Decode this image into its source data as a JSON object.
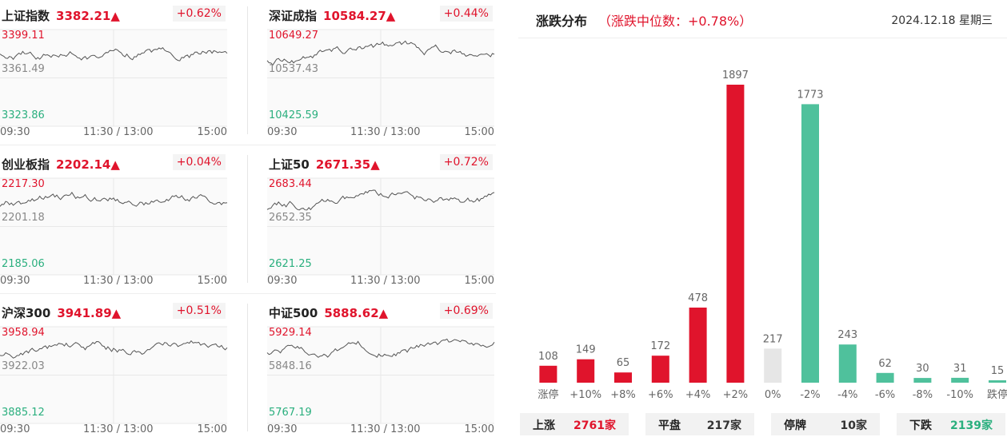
{
  "index_cards": [
    {
      "name": "上证指数",
      "value": "3382.21",
      "arrow": "▲",
      "change": "+0.62%",
      "high": "3399.11",
      "mid": "3361.49",
      "low": "3323.86",
      "times": [
        "09:30",
        "11:30 / 13:00",
        "15:00"
      ]
    },
    {
      "name": "深证成指",
      "value": "10584.27",
      "arrow": "▲",
      "change": "+0.44%",
      "high": "10649.27",
      "mid": "10537.43",
      "low": "10425.59",
      "times": [
        "09:30",
        "11:30 / 13:00",
        "15:00"
      ]
    },
    {
      "name": "创业板指",
      "value": "2202.14",
      "arrow": "▲",
      "change": "+0.04%",
      "high": "2217.30",
      "mid": "2201.18",
      "low": "2185.06",
      "times": [
        "09:30",
        "11:30 / 13:00",
        "15:00"
      ]
    },
    {
      "name": "上证50",
      "value": "2671.35",
      "arrow": "▲",
      "change": "+0.72%",
      "high": "2683.44",
      "mid": "2652.35",
      "low": "2621.25",
      "times": [
        "09:30",
        "11:30 / 13:00",
        "15:00"
      ]
    },
    {
      "name": "沪深300",
      "value": "3941.89",
      "arrow": "▲",
      "change": "+0.51%",
      "high": "3958.94",
      "mid": "3922.03",
      "low": "3885.12",
      "times": [
        "09:30",
        "11:30 / 13:00",
        "15:00"
      ]
    },
    {
      "name": "中证500",
      "value": "5888.62",
      "arrow": "▲",
      "change": "+0.69%",
      "high": "5929.14",
      "mid": "5848.16",
      "low": "5767.19",
      "times": [
        "09:30",
        "11:30 / 13:00",
        "15:00"
      ]
    }
  ],
  "distribution": {
    "title": "涨跌分布",
    "median_text": "（涨跌中位数：+0.78%）",
    "date": "2024.12.18 星期三",
    "colors": {
      "up": "#e0142c",
      "flat": "#e6e6e6",
      "down": "#4fc19c"
    }
  },
  "chart_data": {
    "type": "bar",
    "categories": [
      "涨停",
      "+10%",
      "+8%",
      "+6%",
      "+4%",
      "+2%",
      "0%",
      "-2%",
      "-4%",
      "-6%",
      "-8%",
      "-10%",
      "跌停"
    ],
    "values": [
      108,
      149,
      65,
      172,
      478,
      1897,
      217,
      1773,
      243,
      62,
      30,
      31,
      15
    ],
    "ylim": [
      0,
      1897
    ],
    "grid": false
  },
  "summary": [
    {
      "label": "上涨",
      "value": "2761家",
      "color": "#e0142c"
    },
    {
      "label": "平盘",
      "value": "217家",
      "color": "#333333"
    },
    {
      "label": "停牌",
      "value": "10家",
      "color": "#333333"
    },
    {
      "label": "下跌",
      "value": "2139家",
      "color": "#2aaf7e"
    }
  ]
}
